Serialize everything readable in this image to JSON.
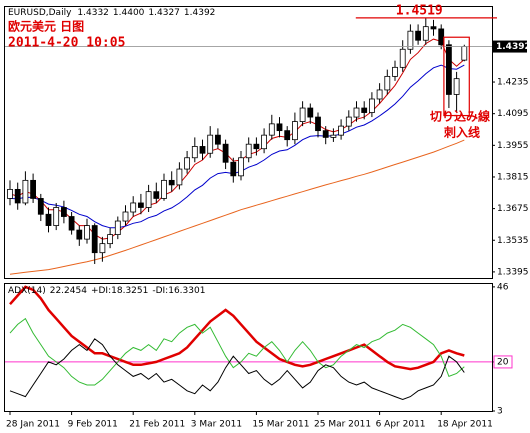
{
  "chart_data": [
    {
      "type": "candlestick",
      "symbol": "EURUSD,Daily",
      "title": "欧元美元 日图",
      "subtitle": "2011-4-20 10:05",
      "annotations": [
        "切り込み線",
        "刺入线"
      ],
      "last_bar_labels": [
        "1.4332",
        "1.4400",
        "1.4327",
        "1.4392"
      ],
      "categories": [
        "28 Jan 2011",
        null,
        null,
        null,
        null,
        null,
        null,
        null,
        "9 Feb 2011",
        null,
        null,
        null,
        null,
        null,
        null,
        null,
        "21 Feb 2011",
        null,
        null,
        null,
        null,
        null,
        null,
        null,
        "3 Mar 2011",
        null,
        null,
        null,
        null,
        null,
        null,
        null,
        "15 Mar 2011",
        null,
        null,
        null,
        null,
        null,
        null,
        null,
        "25 Mar 2011",
        null,
        null,
        null,
        null,
        null,
        null,
        null,
        "6 Apr 2011",
        null,
        null,
        null,
        null,
        null,
        null,
        null,
        "18 Apr 2011",
        null,
        null,
        null
      ],
      "open": [
        1.372,
        1.376,
        1.37,
        1.38,
        1.372,
        1.365,
        1.36,
        1.368,
        1.364,
        1.358,
        1.354,
        1.36,
        1.348,
        1.352,
        1.356,
        1.362,
        1.366,
        1.37,
        1.368,
        1.375,
        1.372,
        1.38,
        1.378,
        1.385,
        1.39,
        1.395,
        1.392,
        1.4,
        1.396,
        1.388,
        1.382,
        1.39,
        1.396,
        1.394,
        1.4,
        1.405,
        1.402,
        1.398,
        1.406,
        1.412,
        1.408,
        1.402,
        1.399,
        1.4,
        1.404,
        1.408,
        1.412,
        1.41,
        1.416,
        1.42,
        1.426,
        1.43,
        1.438,
        1.446,
        1.442,
        1.448,
        1.447,
        1.44,
        1.418,
        1.4332
      ],
      "high": [
        1.38,
        1.379,
        1.384,
        1.383,
        1.374,
        1.368,
        1.37,
        1.371,
        1.366,
        1.36,
        1.363,
        1.361,
        1.355,
        1.359,
        1.364,
        1.369,
        1.373,
        1.374,
        1.378,
        1.379,
        1.383,
        1.384,
        1.388,
        1.393,
        1.399,
        1.398,
        1.404,
        1.403,
        1.398,
        1.39,
        1.393,
        1.399,
        1.399,
        1.403,
        1.409,
        1.408,
        1.404,
        1.41,
        1.415,
        1.414,
        1.41,
        1.404,
        1.403,
        1.407,
        1.411,
        1.415,
        1.415,
        1.419,
        1.423,
        1.429,
        1.433,
        1.442,
        1.449,
        1.449,
        1.4519,
        1.451,
        1.449,
        1.442,
        1.428,
        1.44
      ],
      "low": [
        1.369,
        1.367,
        1.369,
        1.37,
        1.362,
        1.357,
        1.358,
        1.361,
        1.356,
        1.351,
        1.352,
        1.343,
        1.344,
        1.35,
        1.354,
        1.36,
        1.364,
        1.365,
        1.366,
        1.37,
        1.371,
        1.375,
        1.376,
        1.383,
        1.388,
        1.389,
        1.39,
        1.394,
        1.385,
        1.379,
        1.38,
        1.388,
        1.391,
        1.392,
        1.398,
        1.399,
        1.395,
        1.396,
        1.404,
        1.405,
        1.399,
        1.396,
        1.397,
        1.398,
        1.402,
        1.406,
        1.407,
        1.408,
        1.414,
        1.418,
        1.424,
        1.428,
        1.436,
        1.44,
        1.44,
        1.444,
        1.438,
        1.412,
        1.41,
        1.4327
      ],
      "close": [
        1.376,
        1.37,
        1.38,
        1.372,
        1.365,
        1.36,
        1.368,
        1.364,
        1.358,
        1.354,
        1.36,
        1.348,
        1.352,
        1.356,
        1.362,
        1.366,
        1.37,
        1.368,
        1.375,
        1.372,
        1.38,
        1.378,
        1.385,
        1.39,
        1.395,
        1.392,
        1.4,
        1.396,
        1.388,
        1.382,
        1.39,
        1.396,
        1.394,
        1.4,
        1.405,
        1.402,
        1.398,
        1.406,
        1.412,
        1.408,
        1.402,
        1.399,
        1.4,
        1.404,
        1.408,
        1.412,
        1.41,
        1.416,
        1.42,
        1.426,
        1.43,
        1.438,
        1.446,
        1.442,
        1.448,
        1.447,
        1.44,
        1.418,
        1.425,
        1.4392
      ],
      "series": [
        {
          "color": "#cc0000",
          "values": [
            1.374,
            1.373,
            1.375,
            1.374,
            1.371,
            1.367,
            1.367,
            1.366,
            1.363,
            1.36,
            1.36,
            1.356,
            1.354,
            1.3545,
            1.357,
            1.36,
            1.364,
            1.3655,
            1.369,
            1.37,
            1.3735,
            1.375,
            1.3785,
            1.3825,
            1.387,
            1.389,
            1.393,
            1.394,
            1.392,
            1.3885,
            1.389,
            1.3915,
            1.3925,
            1.395,
            1.3985,
            1.3995,
            1.399,
            1.4015,
            1.405,
            1.406,
            1.4045,
            1.4025,
            1.4015,
            1.4025,
            1.4045,
            1.407,
            1.408,
            1.4105,
            1.414,
            1.418,
            1.422,
            1.4275,
            1.4335,
            1.4365,
            1.4405,
            1.4425,
            1.4415,
            1.4335,
            1.4305,
            1.4335
          ]
        },
        {
          "color": "#0000cc",
          "values": [
            1.372,
            1.3718,
            1.3725,
            1.3724,
            1.3712,
            1.3695,
            1.369,
            1.3682,
            1.3667,
            1.365,
            1.364,
            1.3617,
            1.36,
            1.359,
            1.359,
            1.3597,
            1.361,
            1.3617,
            1.3635,
            1.3645,
            1.3665,
            1.3678,
            1.37,
            1.3727,
            1.3758,
            1.3778,
            1.381,
            1.383,
            1.3835,
            1.383,
            1.384,
            1.3858,
            1.387,
            1.389,
            1.3915,
            1.393,
            1.3935,
            1.3955,
            1.398,
            1.3995,
            1.3998,
            1.3996,
            1.3997,
            1.4005,
            1.4018,
            1.4035,
            1.4045,
            1.4063,
            1.4085,
            1.411,
            1.4138,
            1.4172,
            1.4212,
            1.424,
            1.4272,
            1.4298,
            1.431,
            1.4295,
            1.4292,
            1.431
          ]
        },
        {
          "color": "#e8641e",
          "values": [
            1.3385,
            1.3389,
            1.3393,
            1.3397,
            1.3401,
            1.3405,
            1.3412,
            1.3419,
            1.3426,
            1.3433,
            1.344,
            1.3448,
            1.3457,
            1.3468,
            1.3479,
            1.349,
            1.3502,
            1.3514,
            1.3526,
            1.3538,
            1.355,
            1.3562,
            1.3574,
            1.3586,
            1.3598,
            1.361,
            1.3622,
            1.3634,
            1.3646,
            1.3658,
            1.367,
            1.368,
            1.369,
            1.37,
            1.371,
            1.372,
            1.373,
            1.374,
            1.375,
            1.376,
            1.377,
            1.378,
            1.3789,
            1.3799,
            1.3808,
            1.3818,
            1.3827,
            1.3837,
            1.3848,
            1.3859,
            1.387,
            1.3881,
            1.3892,
            1.3903,
            1.3914,
            1.3925,
            1.3938,
            1.3951,
            1.3964,
            1.3978
          ]
        }
      ],
      "ylim": [
        1.3368,
        1.4567
      ],
      "yticks": [
        1.4235,
        1.4095,
        1.3955,
        1.3815,
        1.3675,
        1.3535,
        1.3395
      ],
      "up_color": "#ffffff",
      "down_color": "#000000",
      "annotation_color": "#e00000"
    },
    {
      "type": "line",
      "series": [
        {
          "name": "ADX(14)",
          "color": "#e00000",
          "values": [
            40,
            43,
            46,
            45,
            42,
            38,
            35,
            32,
            29,
            27,
            25,
            23,
            23,
            22,
            21,
            20,
            19,
            19,
            19.5,
            20,
            21,
            22,
            23,
            25,
            28,
            31,
            34,
            36,
            38,
            36,
            33,
            30,
            27,
            25,
            23,
            21,
            20,
            19,
            18.5,
            19,
            20,
            21,
            22,
            23,
            24,
            25,
            26,
            24,
            22,
            20,
            18.5,
            18,
            17.5,
            18,
            19,
            20,
            23,
            24,
            23,
            22.2454
          ]
        },
        {
          "name": "+DI:",
          "color": "#33bb33",
          "values": [
            30,
            33,
            35,
            30,
            26,
            22,
            20,
            18,
            15,
            13,
            12,
            12,
            14,
            17,
            20,
            23,
            25,
            24,
            26,
            24,
            28,
            27,
            30,
            32,
            33,
            30,
            32,
            27,
            22,
            18,
            20,
            23,
            22,
            25,
            27,
            24,
            20,
            24,
            27,
            24,
            20,
            18,
            19,
            22,
            24,
            26,
            25,
            27,
            28,
            30,
            31,
            33,
            32,
            30,
            28,
            26,
            22,
            15,
            16,
            18.3251
          ]
        },
        {
          "name": "-DI:",
          "color": "#000000",
          "values": [
            10,
            9,
            8,
            12,
            16,
            20,
            19,
            21,
            24,
            26,
            24,
            28,
            26,
            22,
            19,
            17,
            15,
            16,
            14,
            16,
            13,
            14,
            12,
            10,
            9,
            12,
            10,
            13,
            18,
            22,
            19,
            16,
            17,
            14,
            12,
            14,
            17,
            14,
            11,
            13,
            17,
            19,
            18,
            15,
            13,
            12,
            13,
            11,
            10,
            9,
            8,
            7,
            8,
            10,
            11,
            12,
            15,
            22,
            20,
            16.3301
          ]
        }
      ],
      "ylim": [
        3,
        47
      ],
      "yticks": [
        46,
        20,
        3
      ],
      "level": 20,
      "level_color": "#ff33cc"
    }
  ]
}
